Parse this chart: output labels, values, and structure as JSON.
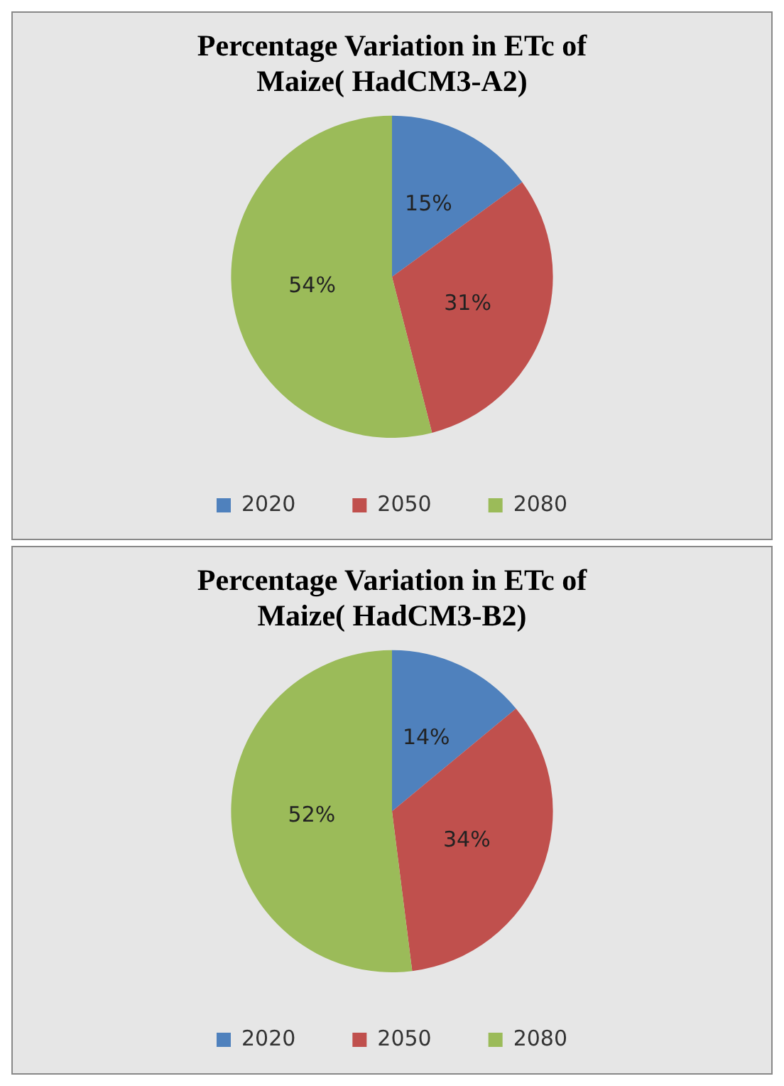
{
  "chart_data": [
    {
      "type": "pie",
      "title": "Percentage Variation in ETc of Maize( HadCM3-A2)",
      "categories": [
        "2020",
        "2050",
        "2080"
      ],
      "values": [
        15,
        31,
        54
      ],
      "value_labels": [
        "15%",
        "31%",
        "54%"
      ],
      "colors": [
        "#4f81bd",
        "#c0504d",
        "#9bbb59"
      ],
      "legend": "bottom"
    },
    {
      "type": "pie",
      "title": "Percentage Variation in ETc of Maize( HadCM3-B2)",
      "categories": [
        "2020",
        "2050",
        "2080"
      ],
      "values": [
        14,
        34,
        52
      ],
      "value_labels": [
        "14%",
        "34%",
        "52%"
      ],
      "colors": [
        "#4f81bd",
        "#c0504d",
        "#9bbb59"
      ],
      "legend": "bottom"
    }
  ]
}
